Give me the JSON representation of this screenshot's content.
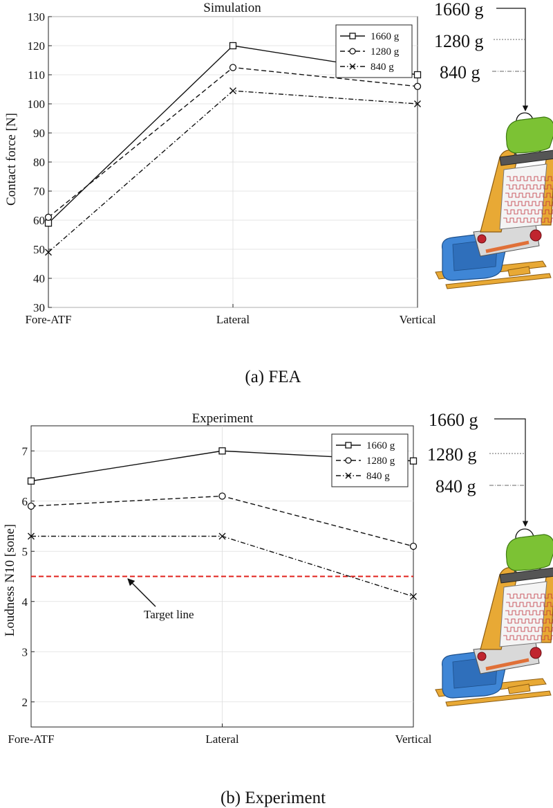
{
  "chart_data": [
    {
      "type": "line",
      "title": "Simulation",
      "caption": "(a) FEA",
      "ylabel": "Contact force [N]",
      "xlabel": "",
      "categories": [
        "Fore-ATF",
        "Lateral",
        "Vertical"
      ],
      "ylim": [
        30,
        130
      ],
      "yticks": [
        30,
        40,
        50,
        60,
        70,
        80,
        90,
        100,
        110,
        120,
        130
      ],
      "grid": true,
      "legend_position": "top-right",
      "series": [
        {
          "name": "1660 g",
          "values": [
            59,
            120,
            110
          ],
          "marker": "square",
          "dash": "solid"
        },
        {
          "name": "1280 g",
          "values": [
            61,
            112.5,
            106
          ],
          "marker": "circle",
          "dash": "dashed"
        },
        {
          "name": "840 g",
          "values": [
            49,
            104.5,
            100
          ],
          "marker": "x",
          "dash": "dashdot"
        }
      ],
      "side_labels": [
        "1660 g",
        "1280 g",
        "840 g"
      ]
    },
    {
      "type": "line",
      "title": "Experiment",
      "caption": "(b) Experiment",
      "ylabel": "Loudness N10 [sone]",
      "xlabel": "",
      "categories": [
        "Fore-ATF",
        "Lateral",
        "Vertical"
      ],
      "ylim": [
        1.5,
        7.5
      ],
      "yticks": [
        2,
        3,
        4,
        5,
        6,
        7
      ],
      "grid": true,
      "legend_position": "top-right",
      "series": [
        {
          "name": "1660 g",
          "values": [
            6.4,
            7.0,
            6.8
          ],
          "marker": "square",
          "dash": "solid"
        },
        {
          "name": "1280 g",
          "values": [
            5.9,
            6.1,
            5.1
          ],
          "marker": "circle",
          "dash": "dashed"
        },
        {
          "name": "840 g",
          "values": [
            5.3,
            5.3,
            4.1
          ],
          "marker": "x",
          "dash": "dashdot"
        }
      ],
      "target_line": {
        "value": 4.5,
        "label": "Target line",
        "color": "#e0201b"
      },
      "side_labels": [
        "1660 g",
        "1280 g",
        "840 g"
      ]
    }
  ],
  "colors": {
    "headrest": "#7cc234",
    "frame": "#e8a935",
    "cushion": "#3f86d6",
    "grid": "#dddddd",
    "target": "#e0201b"
  }
}
